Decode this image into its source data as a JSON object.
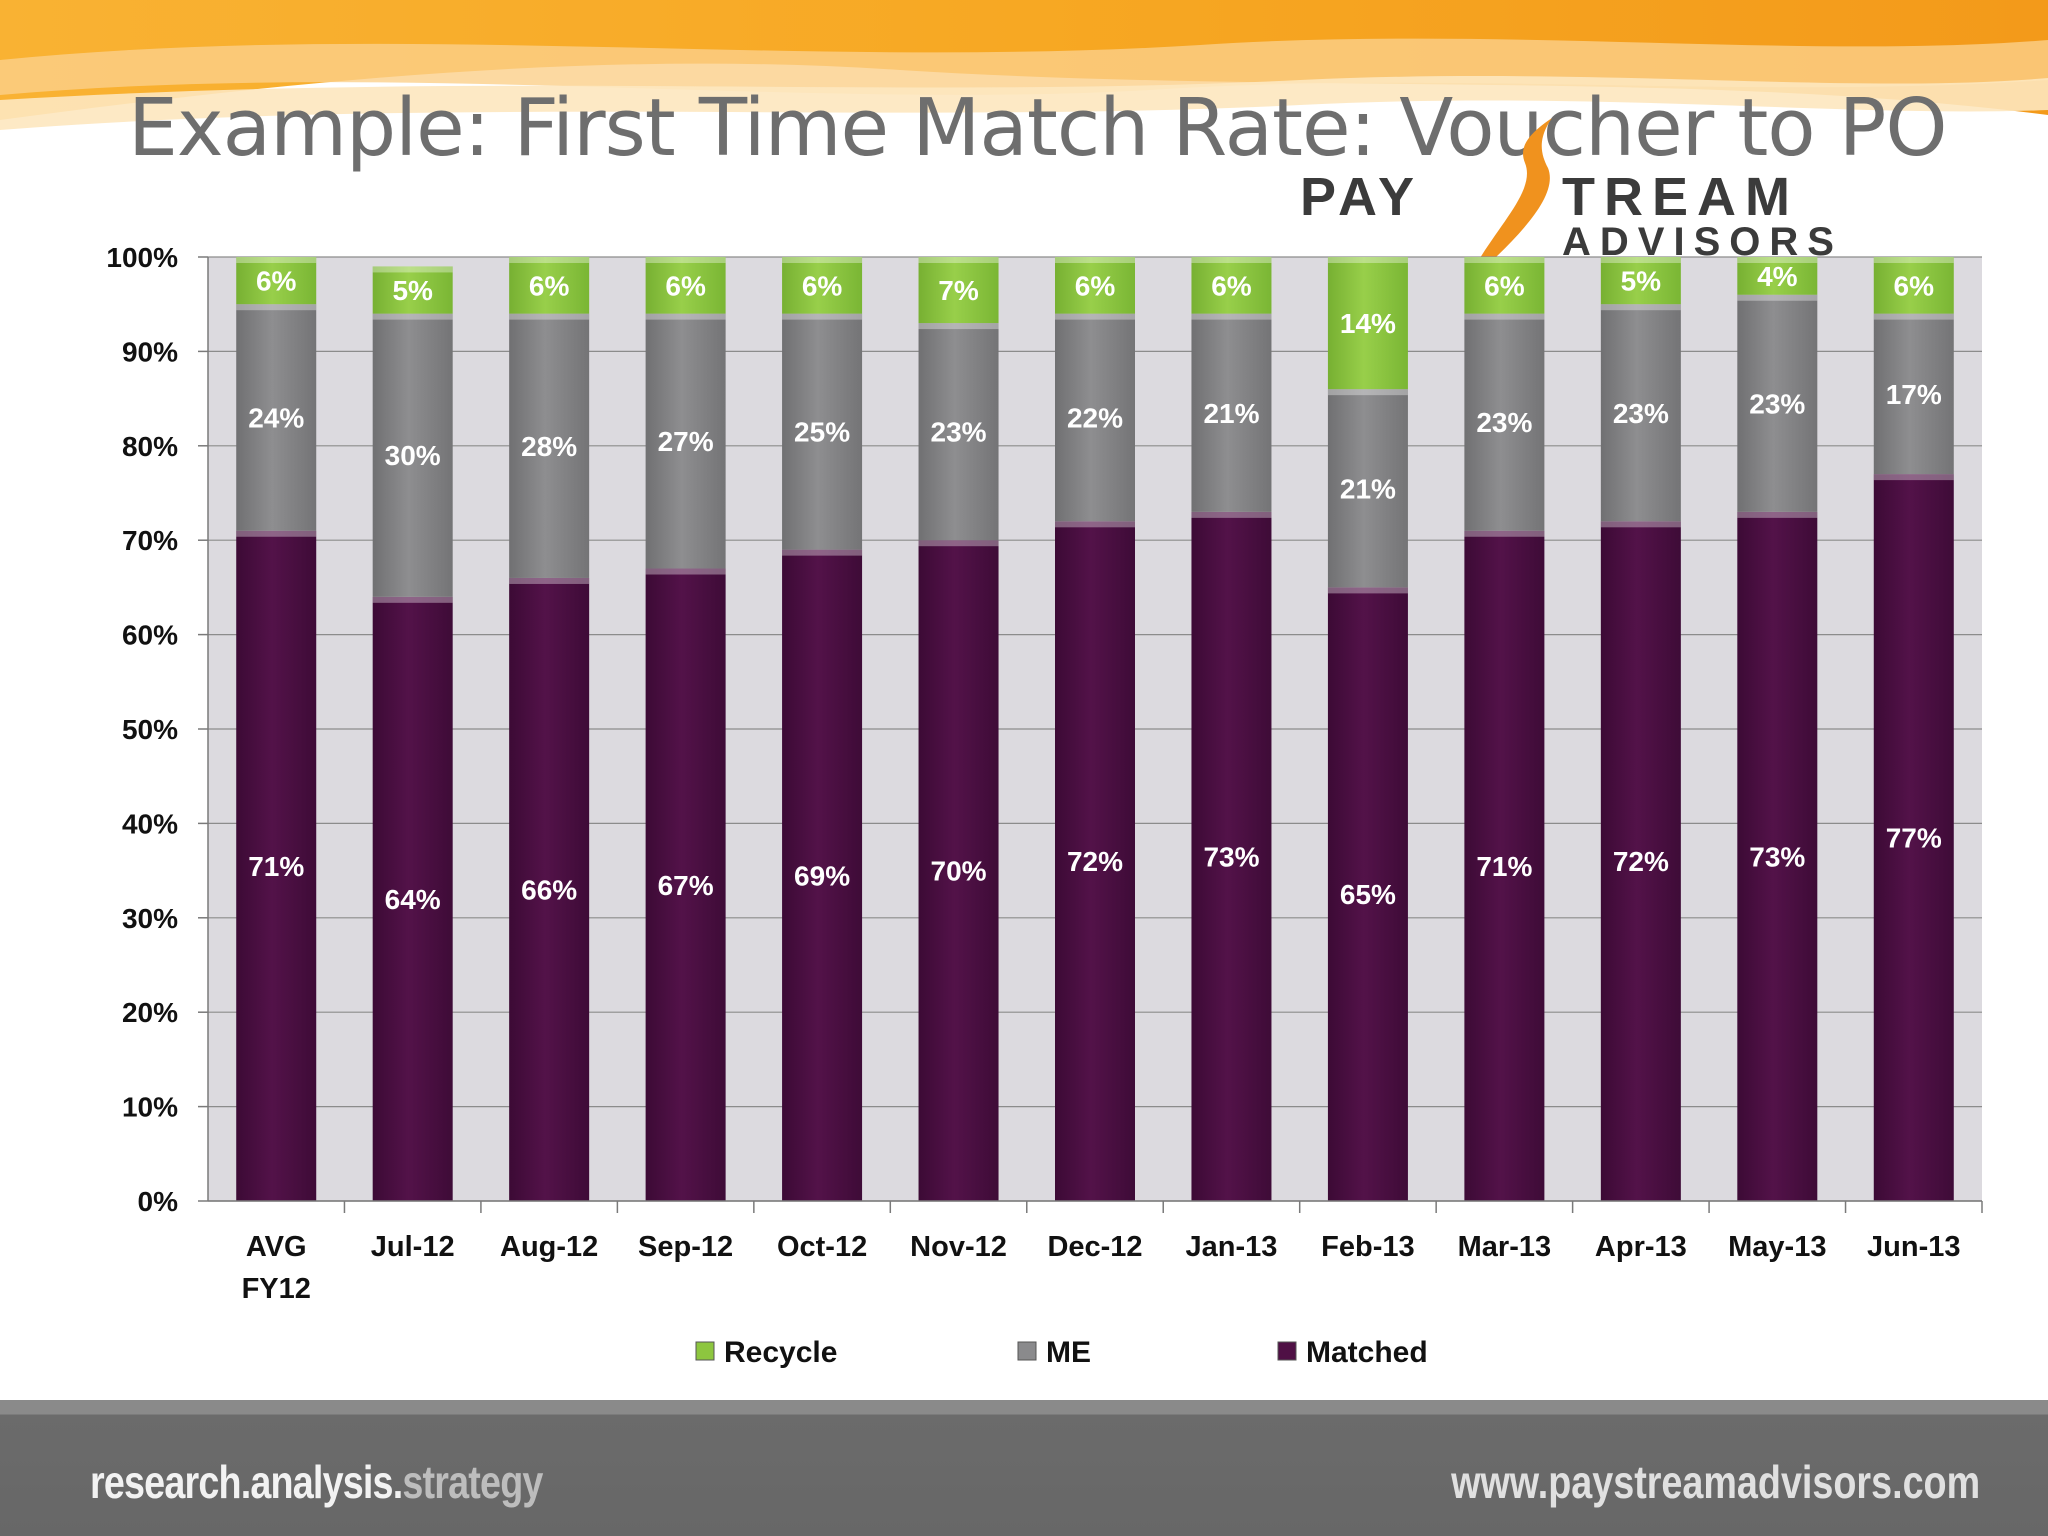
{
  "slide": {
    "title": "Example: First Time Match Rate: Voucher to PO"
  },
  "logo": {
    "line1_left": "PAY",
    "line1_right": "TREAM",
    "line2": "ADVISORS"
  },
  "footer": {
    "tagline_main": "research.analysis.",
    "tagline_accent": "strategy",
    "url": "www.paystreamadvisors.com"
  },
  "colors": {
    "recycle": "#8dc63f",
    "me": "#8a8a8c",
    "matched": "#4f1045",
    "plot_bg": "#dcdadf",
    "banner": "#f7a823"
  },
  "chart_data": {
    "type": "bar",
    "stacked": true,
    "categories": [
      "AVG FY12",
      "Jul-12",
      "Aug-12",
      "Sep-12",
      "Oct-12",
      "Nov-12",
      "Dec-12",
      "Jan-13",
      "Feb-13",
      "Mar-13",
      "Apr-13",
      "May-13",
      "Jun-13"
    ],
    "series": [
      {
        "name": "Matched",
        "values": [
          71,
          64,
          66,
          67,
          69,
          70,
          72,
          73,
          65,
          71,
          72,
          73,
          77
        ]
      },
      {
        "name": "ME",
        "values": [
          24,
          30,
          28,
          27,
          25,
          23,
          22,
          21,
          21,
          23,
          23,
          23,
          17
        ]
      },
      {
        "name": "Recycle",
        "values": [
          6,
          5,
          6,
          6,
          6,
          7,
          6,
          6,
          14,
          6,
          5,
          4,
          6
        ]
      }
    ],
    "y_ticks": [
      "0%",
      "10%",
      "20%",
      "30%",
      "40%",
      "50%",
      "60%",
      "70%",
      "80%",
      "90%",
      "100%"
    ],
    "ylim": [
      0,
      100
    ],
    "legend": [
      "Recycle",
      "ME",
      "Matched"
    ],
    "legend_position": "bottom",
    "grid": true
  }
}
